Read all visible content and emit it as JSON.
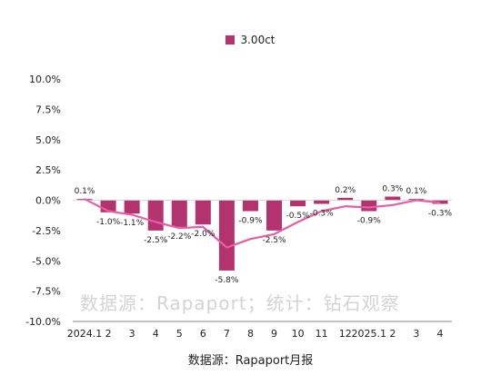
{
  "chart_data": {
    "type": "bar",
    "categories": [
      "2024.1",
      "2",
      "3",
      "4",
      "5",
      "6",
      "7",
      "8",
      "9",
      "10",
      "11",
      "12",
      "2025.1",
      "2",
      "3",
      "4"
    ],
    "series": [
      {
        "name": "3.00ct",
        "values": [
          0.1,
          -1.0,
          -1.1,
          -2.5,
          -2.2,
          -2.0,
          -5.8,
          -0.9,
          -2.5,
          -0.5,
          -0.3,
          0.2,
          -0.9,
          0.3,
          0.1,
          -0.3
        ],
        "labels": [
          "0.1%",
          "-1.0%",
          "-1.1%",
          "-2.5%",
          "-2.2%",
          "-2.0%",
          "-5.8%",
          "-0.9%",
          "-2.5%",
          "-0.5%",
          "-0.3%",
          "0.2%",
          "-0.9%",
          "0.3%",
          "0.1%",
          "-0.3%"
        ]
      }
    ],
    "trend_line": [
      0.1,
      -0.9,
      -1.2,
      -1.8,
      -2.3,
      -2.2,
      -3.9,
      -3.2,
      -2.8,
      -1.8,
      -0.9,
      -0.5,
      -0.6,
      -0.4,
      0.0,
      -0.2
    ],
    "yticks": [
      10,
      7.5,
      5,
      2.5,
      0,
      -2.5,
      -5,
      -7.5,
      -10
    ],
    "ytick_labels": [
      "10.0%",
      "7.5%",
      "5.0%",
      "2.5%",
      "0.0%",
      "-2.5%",
      "-5.0%",
      "-7.5%",
      "-10.0%"
    ],
    "ylim": [
      -10,
      10
    ],
    "legend": "top-center",
    "grid": false,
    "bar_color": "#b3336f",
    "line_color": "#e75ea5",
    "source": "数据源：Rapaport月报",
    "watermark": "数据源：Rapaport；统计：钻石观察"
  }
}
